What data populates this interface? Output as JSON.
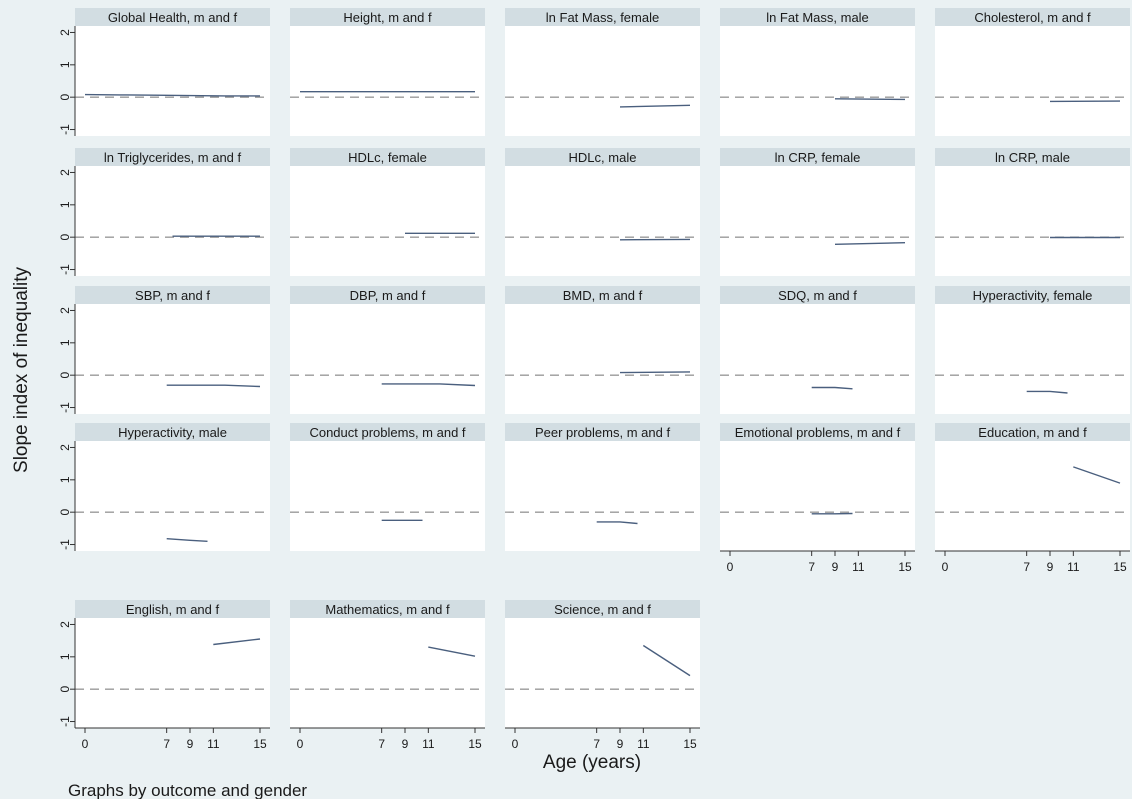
{
  "chart_data": {
    "type": "line",
    "ylabel": "Slope index of inequality",
    "xlabel": "Age (years)",
    "note": "Graphs by outcome and gender",
    "xticks": [
      0,
      7,
      9,
      11,
      15
    ],
    "xlim": [
      0,
      15
    ],
    "yticks": [
      2,
      1,
      0,
      -1
    ],
    "ylim": [
      -1.2,
      2.2
    ],
    "reference_line_y": 0,
    "grid": false,
    "colors": {
      "background": "#eaf1f3",
      "plot_area": "#ffffff",
      "strip": "#d2dde2",
      "series": "#4a5f7e",
      "reference": "#9a9a9a"
    },
    "panels": [
      {
        "title": "Global Health, m and f",
        "x": [
          0,
          3,
          6,
          9,
          12,
          15
        ],
        "y": [
          0.08,
          0.07,
          0.06,
          0.05,
          0.04,
          0.04
        ]
      },
      {
        "title": "Height, m and f",
        "x": [
          0,
          15
        ],
        "y": [
          0.17,
          0.17
        ]
      },
      {
        "title": "ln Fat Mass, female",
        "x": [
          9,
          15
        ],
        "y": [
          -0.3,
          -0.25
        ]
      },
      {
        "title": "ln Fat Mass, male",
        "x": [
          9,
          15
        ],
        "y": [
          -0.05,
          -0.07
        ]
      },
      {
        "title": "Cholesterol, m and f",
        "x": [
          9,
          15
        ],
        "y": [
          -0.13,
          -0.12
        ]
      },
      {
        "title": "ln Triglycerides, m and f",
        "x": [
          7.5,
          15
        ],
        "y": [
          0.03,
          0.03
        ]
      },
      {
        "title": "HDLc, female",
        "x": [
          9,
          15
        ],
        "y": [
          0.12,
          0.12
        ]
      },
      {
        "title": "HDLc, male",
        "x": [
          9,
          15
        ],
        "y": [
          -0.08,
          -0.07
        ]
      },
      {
        "title": "ln CRP, female",
        "x": [
          9,
          15
        ],
        "y": [
          -0.22,
          -0.17
        ]
      },
      {
        "title": "ln CRP, male",
        "x": [
          9,
          15
        ],
        "y": [
          -0.01,
          -0.01
        ]
      },
      {
        "title": "SBP, m and f",
        "x": [
          7,
          12,
          15
        ],
        "y": [
          -0.31,
          -0.31,
          -0.35
        ]
      },
      {
        "title": "DBP, m and f",
        "x": [
          7,
          12,
          15
        ],
        "y": [
          -0.27,
          -0.27,
          -0.32
        ]
      },
      {
        "title": "BMD, m and f",
        "x": [
          9,
          15
        ],
        "y": [
          0.08,
          0.1
        ]
      },
      {
        "title": "SDQ, m and f",
        "x": [
          7,
          9,
          10.5
        ],
        "y": [
          -0.38,
          -0.38,
          -0.42
        ]
      },
      {
        "title": "Hyperactivity, female",
        "x": [
          7,
          9,
          10.5
        ],
        "y": [
          -0.5,
          -0.5,
          -0.55
        ]
      },
      {
        "title": "Hyperactivity, male",
        "x": [
          7,
          9,
          10.5
        ],
        "y": [
          -0.82,
          -0.87,
          -0.9
        ]
      },
      {
        "title": "Conduct problems, m and f",
        "x": [
          7,
          9,
          10.5
        ],
        "y": [
          -0.25,
          -0.25,
          -0.25
        ]
      },
      {
        "title": "Peer problems, m and f",
        "x": [
          7,
          9,
          10.5
        ],
        "y": [
          -0.3,
          -0.3,
          -0.35
        ]
      },
      {
        "title": "Emotional problems, m and f",
        "x": [
          7,
          9,
          10.5
        ],
        "y": [
          -0.05,
          -0.05,
          -0.04
        ]
      },
      {
        "title": "Education, m and f",
        "x": [
          11,
          15
        ],
        "y": [
          1.4,
          0.9
        ]
      },
      {
        "title": "English, m and f",
        "x": [
          11,
          15
        ],
        "y": [
          1.38,
          1.55
        ]
      },
      {
        "title": "Mathematics, m and f",
        "x": [
          11,
          15
        ],
        "y": [
          1.3,
          1.02
        ]
      },
      {
        "title": "Science, m and f",
        "x": [
          11,
          15
        ],
        "y": [
          1.35,
          0.42
        ]
      }
    ]
  }
}
